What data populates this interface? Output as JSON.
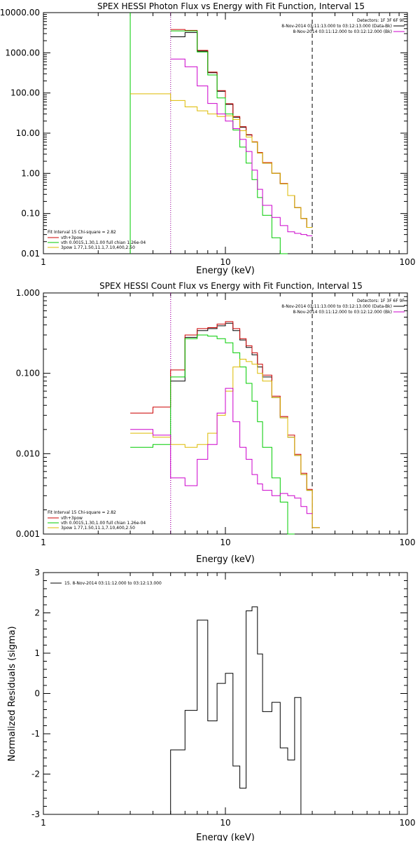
{
  "chart_data": [
    {
      "type": "line",
      "step": true,
      "title": "SPEX HESSI Photon Flux vs Energy with Fit Function, Interval 15",
      "xlabel": "Energy (keV)",
      "ylabel": "",
      "xscale": "log",
      "yscale": "log",
      "xlim": [
        1,
        100
      ],
      "ylim": [
        0.01,
        10000
      ],
      "xticks": [
        1,
        10,
        100
      ],
      "xtick_labels": [
        "1",
        "10",
        "100"
      ],
      "yticks": [
        0.01,
        0.1,
        1,
        10,
        100,
        1000,
        10000
      ],
      "ytick_labels": [
        "0.01",
        "0.10",
        "1.00",
        "10.00",
        "100.00",
        "1000.00",
        "10000.00"
      ],
      "edges": [
        3.0,
        5.0,
        6.0,
        7.0,
        8.0,
        9.0,
        10.0,
        11.0,
        12.0,
        13.0,
        14.0,
        15.0,
        16.0,
        18.0,
        20.0,
        22.0,
        24.0,
        26.0,
        28.0,
        30.0,
        33.0
      ],
      "vlines": [
        {
          "x": 3.0,
          "color": "#00cc00",
          "style": "solid"
        },
        {
          "x": 5.0,
          "color": "#00cc00",
          "style": "dotted"
        },
        {
          "x": 5.0,
          "color": "#cc00cc",
          "style": "dotted"
        },
        {
          "x": 30.0,
          "color": "#000000",
          "style": "dashed"
        }
      ],
      "info_right": [
        "Detectors: 1F 3F 6F 9F",
        "8-Nov-2014 03:11:13.000 to 03:12:13.000 (Data-Bk)",
        "8-Nov-2014 03:11:12.000 to 03:12:12.000 (Bk)"
      ],
      "info_right_colors": [
        "",
        "#000000",
        "#cc00cc"
      ],
      "legend": [
        "Fit Interval 15   Chi-square = 2.82",
        "vth+3pow",
        "vth 0.0015,1.30,1.00  full chian 1.26e-04",
        "3pow 1.77,1.50,11.1,7.10,400,2.50"
      ],
      "legend_colors": [
        "",
        "#cc0000",
        "#00cc00",
        "#ddbb00"
      ],
      "series": [
        {
          "name": "",
          "color": "#000000",
          "values": [
            null,
            2500,
            3200,
            1100,
            320,
            110,
            52,
            25,
            14,
            9,
            6,
            3.2,
            1.8,
            1.0,
            0.55,
            0.28,
            0.14,
            0.075,
            0.045,
            null
          ]
        },
        {
          "name": "vth+3pow",
          "color": "#cc0000",
          "values": [
            null,
            3800,
            3600,
            1150,
            330,
            115,
            54,
            26,
            14.5,
            9.2,
            6.1,
            3.3,
            1.85,
            1.0,
            0.56,
            0.28,
            0.14,
            0.075,
            0.045,
            null
          ]
        },
        {
          "name": "vth 0.0015,1.30,1.00  full chian 1.26e-04",
          "color": "#00cc00",
          "values": [
            null,
            3500,
            3500,
            1050,
            280,
            75,
            30,
            12,
            4.5,
            1.8,
            0.7,
            0.25,
            0.09,
            0.025,
            0.008,
            null,
            null,
            null,
            null,
            null
          ]
        },
        {
          "name": "3pow 1.77,1.50,11.1,7.10,400,2.50",
          "color": "#ddbb00",
          "values": [
            95,
            65,
            45,
            36,
            30,
            26,
            27,
            22,
            11.5,
            8,
            6,
            3.2,
            1.8,
            1.0,
            0.55,
            0.28,
            0.14,
            0.075,
            0.045,
            null
          ]
        },
        {
          "name": "",
          "color": "#cc00cc",
          "values": [
            null,
            700,
            450,
            150,
            55,
            30,
            20,
            13,
            7,
            3.5,
            1.2,
            0.4,
            0.16,
            0.08,
            0.05,
            0.035,
            0.032,
            0.03,
            0.028,
            null
          ]
        }
      ]
    },
    {
      "type": "line",
      "step": true,
      "title": "SPEX HESSI Count Flux vs Energy with Fit Function, Interval 15",
      "xlabel": "Energy (keV)",
      "ylabel": "",
      "xscale": "log",
      "yscale": "log",
      "xlim": [
        1,
        100
      ],
      "ylim": [
        0.001,
        1
      ],
      "xticks": [
        1,
        10,
        100
      ],
      "xtick_labels": [
        "1",
        "10",
        "100"
      ],
      "yticks": [
        0.001,
        0.01,
        0.1,
        1
      ],
      "ytick_labels": [
        "0.001",
        "0.010",
        "0.100",
        "1.000"
      ],
      "edges": [
        3.0,
        4.0,
        5.0,
        6.0,
        7.0,
        8.0,
        9.0,
        10.0,
        11.0,
        12.0,
        13.0,
        14.0,
        15.0,
        16.0,
        18.0,
        20.0,
        22.0,
        24.0,
        26.0,
        28.0,
        30.0,
        33.0
      ],
      "vlines": [
        {
          "x": 5.0,
          "color": "#000000",
          "style": "dotted"
        },
        {
          "x": 5.0,
          "color": "#cc00cc",
          "style": "dotted"
        },
        {
          "x": 30.0,
          "color": "#000000",
          "style": "dashed"
        }
      ],
      "info_right": [
        "Detectors: 1F 3F 6F 9F",
        "8-Nov-2014 03:11:13.000 to 03:12:13.000 (Data-Bk)",
        "8-Nov-2014 03:11:12.000 to 03:12:12.000 (Bk)"
      ],
      "info_right_colors": [
        "",
        "#000000",
        "#cc00cc"
      ],
      "legend": [
        "Fit Interval 15   Chi-square = 2.82",
        "vth+3pow",
        "vth 0.0015,1.30,1.00  full chian 1.26e-04",
        "3pow 1.77,1.50,11.1,7.10,400,2.50"
      ],
      "legend_colors": [
        "",
        "#cc0000",
        "#00cc00",
        "#ddbb00"
      ],
      "series": [
        {
          "name": "",
          "color": "#000000",
          "values": [
            null,
            null,
            0.08,
            0.28,
            0.34,
            0.36,
            0.39,
            0.42,
            0.34,
            0.26,
            0.21,
            0.17,
            0.12,
            0.09,
            0.05,
            0.028,
            0.016,
            0.0095,
            0.0055,
            0.0035,
            0.0012
          ]
        },
        {
          "name": "vth+3pow",
          "color": "#cc0000",
          "values": [
            0.032,
            0.038,
            0.11,
            0.3,
            0.36,
            0.37,
            0.41,
            0.44,
            0.36,
            0.27,
            0.22,
            0.18,
            0.13,
            0.095,
            0.052,
            0.029,
            0.017,
            0.0098,
            0.0057,
            0.0036,
            0.0012
          ]
        },
        {
          "name": "vth 0.0015,1.30,1.00  full chian 1.26e-04",
          "color": "#00cc00",
          "values": [
            0.012,
            0.013,
            0.09,
            0.27,
            0.3,
            0.29,
            0.27,
            0.24,
            0.18,
            0.12,
            0.075,
            0.045,
            0.025,
            0.012,
            0.005,
            0.0025,
            0.001,
            null,
            null,
            null,
            null
          ]
        },
        {
          "name": "3pow 1.77,1.50,11.1,7.10,400,2.50",
          "color": "#ddbb00",
          "values": [
            0.018,
            0.016,
            0.013,
            0.012,
            0.013,
            0.018,
            0.03,
            0.06,
            0.12,
            0.15,
            0.14,
            0.13,
            0.1,
            0.08,
            0.05,
            0.028,
            0.016,
            0.0095,
            0.0055,
            0.0035,
            0.0012
          ]
        },
        {
          "name": "",
          "color": "#cc00cc",
          "values": [
            0.02,
            0.017,
            0.005,
            0.004,
            0.0085,
            0.013,
            0.032,
            0.065,
            0.025,
            0.012,
            0.0085,
            0.0055,
            0.0042,
            0.0035,
            0.003,
            0.0032,
            0.003,
            0.0028,
            0.0022,
            0.0018,
            null
          ]
        }
      ]
    },
    {
      "type": "line",
      "step": true,
      "title": "",
      "xlabel": "Energy (keV)",
      "ylabel": "Normalized Residuals (sigma)",
      "xscale": "log",
      "yscale": "linear",
      "xlim": [
        1,
        100
      ],
      "ylim": [
        -3,
        3
      ],
      "xticks": [
        1,
        10,
        100
      ],
      "xtick_labels": [
        "1",
        "10",
        "100"
      ],
      "yticks": [
        -3,
        -2,
        -1,
        0,
        1,
        2,
        3
      ],
      "ytick_labels": [
        "-3",
        "-2",
        "-1",
        "0",
        "1",
        "2",
        "3"
      ],
      "edges": [
        5.0,
        6.0,
        7.0,
        8.0,
        9.0,
        10.0,
        11.0,
        12.0,
        13.0,
        14.0,
        15.0,
        16.0,
        18.0,
        20.0,
        22.0,
        24.0,
        26.0,
        28.0,
        30.0
      ],
      "drop_ends": true,
      "legend": [
        "15.  8-Nov-2014 03:11:12.000 to 03:12:13.000"
      ],
      "legend_colors": [
        "#000000"
      ],
      "series": [
        {
          "name": "15.  8-Nov-2014 03:11:12.000 to 03:12:13.000",
          "color": "#000000",
          "values": [
            -1.4,
            -0.42,
            1.82,
            -0.68,
            0.25,
            0.5,
            -1.8,
            -2.35,
            2.05,
            2.15,
            0.98,
            -0.45,
            -0.22,
            -1.35,
            -1.65,
            -0.1,
            null,
            null
          ]
        }
      ]
    }
  ]
}
